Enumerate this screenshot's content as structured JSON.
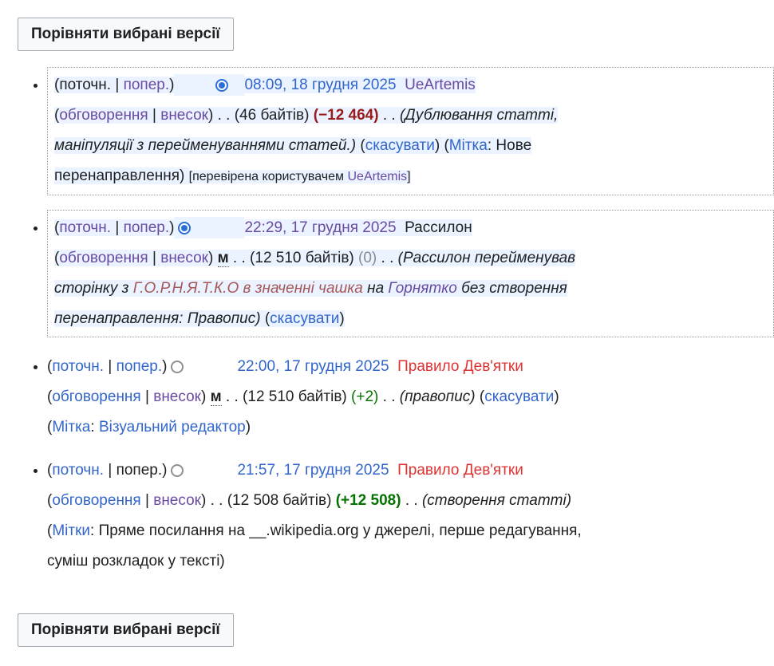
{
  "compare_button_label": "Порівняти вибрані версії",
  "colors": {
    "link_blue": "#3366cc",
    "link_visited_purple": "#6b4ba1",
    "link_red": "#dd3333",
    "link_red_visited": "#a55858",
    "bytes_negative": "#991b1b",
    "bytes_positive": "#067300",
    "bytes_zero": "#8a8a8a",
    "selected_row_highlight": "#eaf3ff",
    "orange_user_highlight": "#ff9c3a",
    "yellow_text_highlight": "#ffff00",
    "radio_checked": "#2b6fd8"
  },
  "revisions": [
    {
      "selected": true,
      "segments": [
        {
          "t": "(поточн. | "
        },
        {
          "t": "попер.",
          "cls": "lp",
          "i": true,
          "name": "prev-link"
        },
        {
          "t": ")"
        },
        {
          "radio": "a",
          "present": false
        },
        {
          "radio": "b",
          "present": true,
          "checked": true,
          "name": "radio-select-newer"
        },
        {
          "t": "08:09, 18 грудня 2025",
          "cls": "lb",
          "i": true,
          "name": "timestamp-link"
        },
        {
          "t": "  "
        },
        {
          "t": "UeArtemis",
          "cls": "lp",
          "i": true,
          "name": "user-link"
        },
        {
          "br": true
        },
        {
          "t": "("
        },
        {
          "t": "обговорення",
          "cls": "lp",
          "i": true,
          "name": "talk-link"
        },
        {
          "t": " | "
        },
        {
          "t": "внесок",
          "cls": "lp",
          "i": true,
          "name": "contribs-link"
        },
        {
          "t": ")"
        },
        {
          "t": " . . "
        },
        {
          "t": "(46 байтів)",
          "name": "page-size"
        },
        {
          "t": " "
        },
        {
          "t": "(−12 464)",
          "cls": "neg",
          "name": "byte-change-negative"
        },
        {
          "t": " . . "
        },
        {
          "t": "(Дублювання статті,",
          "cls": "it",
          "name": "edit-summary"
        },
        {
          "br": true
        },
        {
          "t": "маніпуляції з перейменуваннями статей.)",
          "cls": "it",
          "name": "edit-summary"
        },
        {
          "t": " ("
        },
        {
          "t": "скасувати",
          "cls": "lb",
          "i": true,
          "name": "undo-link"
        },
        {
          "t": ") ("
        },
        {
          "t": "Мітка",
          "cls": "lb",
          "i": true,
          "name": "tag-link"
        },
        {
          "t": ": Нове"
        },
        {
          "br": true
        },
        {
          "t": "перенаправлення)",
          "name": "tag-value"
        },
        {
          "t": " "
        },
        {
          "t": "[перевірена користувачем ",
          "cls": "small",
          "name": "patrol-note"
        },
        {
          "t": "UeArtemis",
          "cls": "lp small",
          "i": true,
          "name": "patroller-link"
        },
        {
          "t": "]",
          "cls": "small",
          "name": "patrol-note"
        }
      ]
    },
    {
      "selected": true,
      "segments": [
        {
          "t": "("
        },
        {
          "t": "поточн.",
          "cls": "lp",
          "i": true,
          "name": "cur-link"
        },
        {
          "t": " | "
        },
        {
          "t": "попер.",
          "cls": "lp",
          "i": true,
          "name": "prev-link"
        },
        {
          "t": ")"
        },
        {
          "radio": "a",
          "present": true,
          "checked": true,
          "name": "radio-select-older"
        },
        {
          "radio": "b",
          "present": false
        },
        {
          "t": "22:29, 17 грудня 2025",
          "cls": "lp",
          "i": true,
          "name": "timestamp-link"
        },
        {
          "t": "  "
        },
        {
          "t": "Рассилон",
          "cls": "hlorange",
          "i": true,
          "name": "user-link"
        },
        {
          "br": true
        },
        {
          "t": "("
        },
        {
          "t": "обговорення",
          "cls": "lp",
          "i": true,
          "name": "talk-link"
        },
        {
          "t": " | "
        },
        {
          "t": "внесок",
          "cls": "lp",
          "i": true,
          "name": "contribs-link"
        },
        {
          "t": ")"
        },
        {
          "t": " "
        },
        {
          "t": "м",
          "cls": "minor",
          "name": "minor-edit-flag"
        },
        {
          "t": " . . "
        },
        {
          "t": "(12 510 байтів)",
          "name": "page-size"
        },
        {
          "t": " "
        },
        {
          "t": "(0)",
          "cls": "zero",
          "name": "byte-change-zero"
        },
        {
          "t": " . . "
        },
        {
          "t": "(",
          "cls": "it"
        },
        {
          "t": "Рассилон",
          "cls": "it hlyellow",
          "name": "highlighted-username"
        },
        {
          "t": " перейменував",
          "cls": "it",
          "name": "edit-summary"
        },
        {
          "br": true
        },
        {
          "t": "сторінку з ",
          "cls": "it",
          "name": "edit-summary"
        },
        {
          "t": "Г.О.Р.Н.Я.Т.К.О в значенні чашка",
          "cls": "it lrv",
          "i": true,
          "name": "old-title-link"
        },
        {
          "t": " на ",
          "cls": "it"
        },
        {
          "t": "Горнятко",
          "cls": "it lp",
          "i": true,
          "name": "new-title-link"
        },
        {
          "t": " без створення",
          "cls": "it",
          "name": "edit-summary"
        },
        {
          "br": true
        },
        {
          "t": "перенаправлення: Правопис)",
          "cls": "it",
          "name": "edit-summary"
        },
        {
          "t": " ("
        },
        {
          "t": "скасувати",
          "cls": "lb",
          "i": true,
          "name": "undo-link"
        },
        {
          "t": ")"
        }
      ]
    },
    {
      "selected": false,
      "segments": [
        {
          "t": "("
        },
        {
          "t": "поточн.",
          "cls": "lb",
          "i": true,
          "name": "cur-link"
        },
        {
          "t": " | "
        },
        {
          "t": "попер.",
          "cls": "lb",
          "i": true,
          "name": "prev-link"
        },
        {
          "t": ")"
        },
        {
          "radio": "a",
          "present": true,
          "checked": false,
          "name": "radio-select-older"
        },
        {
          "radio": "b",
          "present": false
        },
        {
          "t": "22:00, 17 грудня 2025",
          "cls": "lb",
          "i": true,
          "name": "timestamp-link"
        },
        {
          "t": "  "
        },
        {
          "t": "Правило Дев'ятки",
          "cls": "lr",
          "i": true,
          "name": "user-link"
        },
        {
          "br": true
        },
        {
          "t": "("
        },
        {
          "t": "обговорення",
          "cls": "lb",
          "i": true,
          "name": "talk-link"
        },
        {
          "t": " | "
        },
        {
          "t": "внесок",
          "cls": "lp",
          "i": true,
          "name": "contribs-link"
        },
        {
          "t": ")"
        },
        {
          "t": " "
        },
        {
          "t": "м",
          "cls": "minor",
          "name": "minor-edit-flag"
        },
        {
          "t": " . . "
        },
        {
          "t": "(12 510 байтів)",
          "name": "page-size"
        },
        {
          "t": " "
        },
        {
          "t": "(+2)",
          "cls": "pos",
          "name": "byte-change-positive"
        },
        {
          "t": " . . "
        },
        {
          "t": "(правопис)",
          "cls": "it",
          "name": "edit-summary"
        },
        {
          "t": " ("
        },
        {
          "t": "скасувати",
          "cls": "lb",
          "i": true,
          "name": "undo-link"
        },
        {
          "t": ")"
        },
        {
          "br": true
        },
        {
          "t": "("
        },
        {
          "t": "Мітка",
          "cls": "lb",
          "i": true,
          "name": "tag-link"
        },
        {
          "t": ": "
        },
        {
          "t": "Візуальний редактор",
          "cls": "lb",
          "i": true,
          "name": "tag-visual-editor-link"
        },
        {
          "t": ")"
        }
      ]
    },
    {
      "selected": false,
      "segments": [
        {
          "t": "("
        },
        {
          "t": "поточн.",
          "cls": "lb",
          "i": true,
          "name": "cur-link"
        },
        {
          "t": " | попер.)"
        },
        {
          "radio": "a",
          "present": true,
          "checked": false,
          "name": "radio-select-older"
        },
        {
          "radio": "b",
          "present": false
        },
        {
          "t": "21:57, 17 грудня 2025",
          "cls": "lb",
          "i": true,
          "name": "timestamp-link"
        },
        {
          "t": "  "
        },
        {
          "t": "Правило Дев'ятки",
          "cls": "lr",
          "i": true,
          "name": "user-link"
        },
        {
          "br": true
        },
        {
          "t": "("
        },
        {
          "t": "обговорення",
          "cls": "lb",
          "i": true,
          "name": "talk-link"
        },
        {
          "t": " | "
        },
        {
          "t": "внесок",
          "cls": "lp",
          "i": true,
          "name": "contribs-link"
        },
        {
          "t": ")"
        },
        {
          "t": " . . "
        },
        {
          "t": "(12 508 байтів)",
          "name": "page-size"
        },
        {
          "t": " "
        },
        {
          "t": "(+12 508)",
          "cls": "posb",
          "name": "byte-change-positive"
        },
        {
          "t": " . . "
        },
        {
          "t": "(створення статті)",
          "cls": "it",
          "name": "edit-summary"
        },
        {
          "br": true
        },
        {
          "t": "("
        },
        {
          "t": "Мітки",
          "cls": "lb",
          "i": true,
          "name": "tags-link"
        },
        {
          "t": ": Пряме посилання на __.wikipedia.org у джерелі, перше редагування,",
          "name": "tag-value"
        },
        {
          "br": true
        },
        {
          "t": "суміш розкладок у тексті)",
          "name": "tag-value"
        }
      ]
    }
  ]
}
